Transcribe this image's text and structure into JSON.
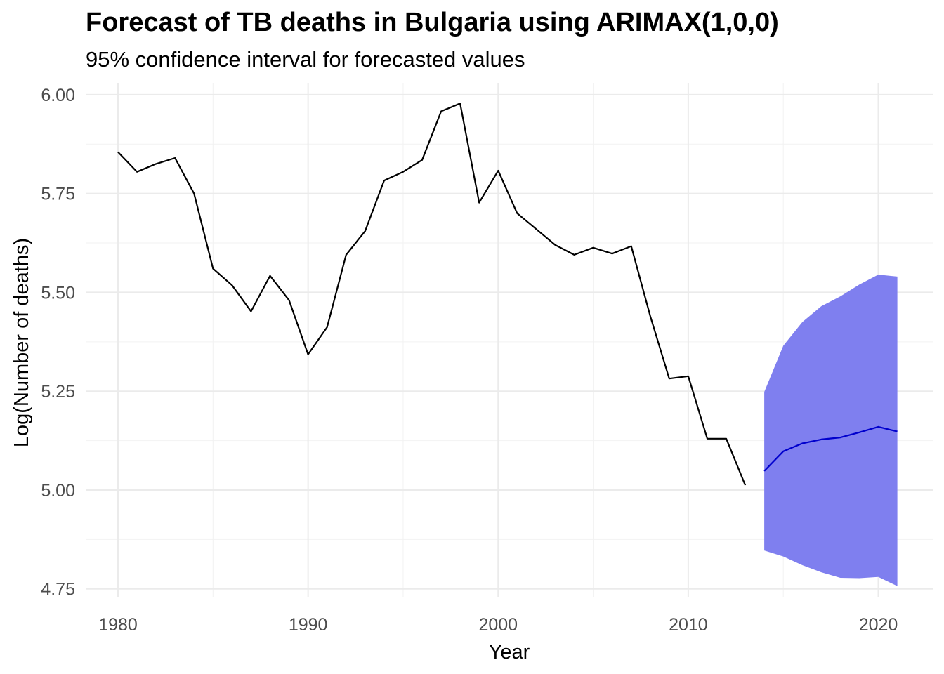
{
  "chart_data": {
    "type": "line",
    "title": "Forecast of TB deaths in Bulgaria using ARIMAX(1,0,0)",
    "subtitle": "95% confidence interval for forecasted values",
    "xlabel": "Year",
    "ylabel": "Log(Number of deaths)",
    "xlim": [
      1978.3,
      2022.9
    ],
    "ylim": [
      4.73,
      6.03
    ],
    "x_ticks": [
      1980,
      1990,
      2000,
      2010,
      2020
    ],
    "x_tick_labels": [
      "1980",
      "1990",
      "2000",
      "2010",
      "2020"
    ],
    "y_ticks": [
      4.75,
      5.0,
      5.25,
      5.5,
      5.75,
      6.0
    ],
    "y_tick_labels": [
      "4.75",
      "5.00",
      "5.25",
      "5.50",
      "5.75",
      "6.00"
    ],
    "grid": true,
    "colors": {
      "observed": "#000000",
      "forecast": "#0000cd",
      "interval": "#7f7fef"
    },
    "series": [
      {
        "x": [
          1980,
          1981,
          1982,
          1983,
          1984,
          1985,
          1986,
          1987,
          1988,
          1989,
          1990,
          1991,
          1992,
          1993,
          1994,
          1995,
          1996,
          1997,
          1998,
          1999,
          2000,
          2001,
          2002,
          2003,
          2004,
          2005,
          2006,
          2007,
          2008,
          2009,
          2010,
          2011,
          2012,
          2013
        ],
        "values": [
          5.855,
          5.805,
          5.825,
          5.84,
          5.75,
          5.56,
          5.518,
          5.452,
          5.542,
          5.48,
          5.343,
          5.412,
          5.595,
          5.655,
          5.783,
          5.805,
          5.835,
          5.958,
          5.978,
          5.727,
          5.808,
          5.7,
          5.66,
          5.62,
          5.595,
          5.613,
          5.598,
          5.617,
          5.44,
          5.282,
          5.288,
          5.13,
          5.13,
          5.012
        ]
      },
      {
        "x": [
          2014,
          2015,
          2016,
          2017,
          2018,
          2019,
          2020,
          2021
        ],
        "values": [
          5.048,
          5.098,
          5.118,
          5.128,
          5.133,
          5.146,
          5.16,
          5.148
        ],
        "lower": [
          4.847,
          4.832,
          4.81,
          4.792,
          4.778,
          4.777,
          4.78,
          4.757
        ],
        "upper": [
          5.248,
          5.365,
          5.425,
          5.465,
          5.49,
          5.52,
          5.545,
          5.54
        ]
      }
    ]
  }
}
